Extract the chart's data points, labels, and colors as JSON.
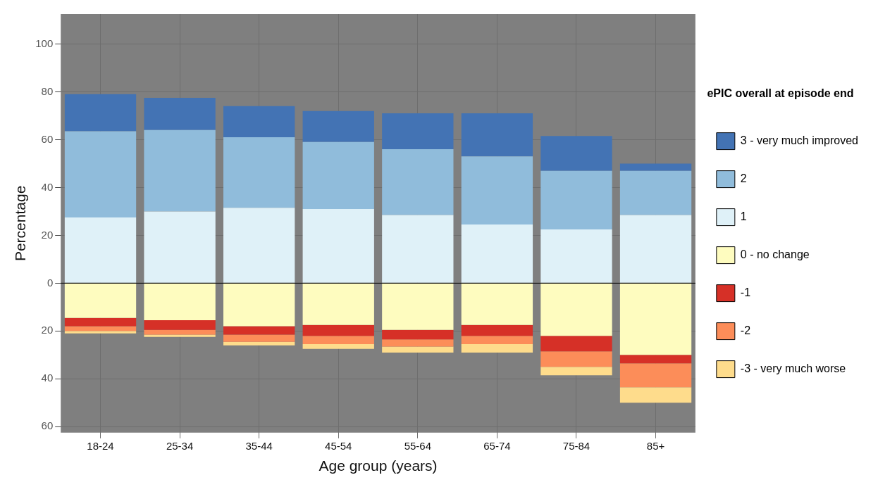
{
  "chart_data": {
    "type": "bar",
    "stacked": true,
    "xlabel": "Age group (years)",
    "ylabel": "Percentage",
    "legend_title": "ePIC overall at episode end",
    "legend": "right",
    "grid": true,
    "categories": [
      "18-24",
      "25-34",
      "35-44",
      "45-54",
      "55-64",
      "65-74",
      "75-84",
      "85+"
    ],
    "ylim": [
      -62.5,
      112.5
    ],
    "yticks": [
      {
        "value": -60,
        "label": "60"
      },
      {
        "value": -40,
        "label": "40"
      },
      {
        "value": -20,
        "label": "20"
      },
      0,
      20,
      40,
      60,
      80,
      100
    ],
    "ref_lines": [
      {
        "axis": "y",
        "value": 0,
        "color": "#000000"
      }
    ],
    "series": [
      {
        "name": "1",
        "color": "#dff1f8",
        "values": [
          27.5,
          30,
          31.5,
          31,
          28.5,
          24.5,
          22.5,
          28.5
        ]
      },
      {
        "name": "2",
        "color": "#90bcdb",
        "values": [
          36,
          34,
          29.5,
          28,
          27.5,
          28.5,
          24.5,
          18.5
        ]
      },
      {
        "name": "3 - very much improved",
        "color": "#4373b4",
        "values": [
          15.5,
          13.5,
          13,
          13,
          15,
          18,
          14.5,
          3
        ]
      },
      {
        "name": "0 - no change",
        "color": "#fefcbf",
        "values": [
          -14.5,
          -15.5,
          -18,
          -17.5,
          -19.5,
          -17.5,
          -22,
          -30
        ]
      },
      {
        "name": "-1",
        "color": "#d63027",
        "values": [
          -3.5,
          -4,
          -3.5,
          -4.5,
          -4,
          -4.5,
          -6.5,
          -3.5
        ]
      },
      {
        "name": "-2",
        "color": "#fc8d59",
        "values": [
          -2,
          -2,
          -3,
          -3.5,
          -3,
          -3.5,
          -6.5,
          -10
        ]
      },
      {
        "name": "-3 - very much worse",
        "color": "#fedc8c",
        "values": [
          -1,
          -1,
          -1.5,
          -2,
          -2.5,
          -3.5,
          -3.5,
          -6.5
        ]
      }
    ]
  }
}
